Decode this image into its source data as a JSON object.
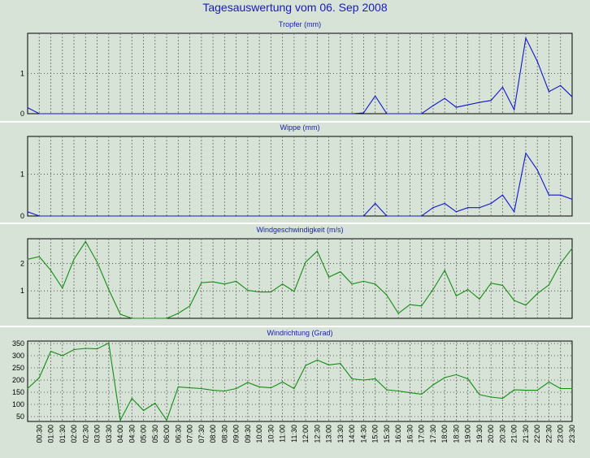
{
  "title": "Tagesauswertung vom 06. Sep 2008",
  "x_labels": [
    "00:30",
    "01:00",
    "01:30",
    "02:00",
    "02:30",
    "03:00",
    "03:30",
    "04:00",
    "04:30",
    "05:00",
    "05:30",
    "06:00",
    "06:30",
    "07:00",
    "07:30",
    "08:00",
    "08:30",
    "09:00",
    "09:30",
    "10:00",
    "10:30",
    "11:00",
    "11:30",
    "12:00",
    "12:30",
    "13:00",
    "13:30",
    "14:00",
    "14:30",
    "15:00",
    "15:30",
    "16:00",
    "16:30",
    "17:00",
    "17:30",
    "18:00",
    "18:30",
    "19:00",
    "19:30",
    "20:00",
    "20:30",
    "21:00",
    "21:30",
    "22:00",
    "22:30",
    "23:00",
    "23:30"
  ],
  "chart_data": [
    {
      "type": "line",
      "title": "Tropfer (mm)",
      "color": "#1414d2",
      "ylim": [
        0,
        2
      ],
      "yticks": [
        0,
        1
      ],
      "x": [
        "00:00",
        "00:30",
        "01:00",
        "01:30",
        "02:00",
        "02:30",
        "03:00",
        "03:30",
        "04:00",
        "04:30",
        "05:00",
        "05:30",
        "06:00",
        "06:30",
        "07:00",
        "07:30",
        "08:00",
        "08:30",
        "09:00",
        "09:30",
        "10:00",
        "10:30",
        "11:00",
        "11:30",
        "12:00",
        "12:30",
        "13:00",
        "13:30",
        "14:00",
        "14:30",
        "15:00",
        "15:30",
        "16:00",
        "16:30",
        "17:00",
        "17:30",
        "18:00",
        "18:30",
        "19:00",
        "19:30",
        "20:00",
        "20:30",
        "21:00",
        "21:30",
        "22:00",
        "22:30",
        "23:00",
        "23:30"
      ],
      "values": [
        0.15,
        0,
        0,
        0,
        0,
        0,
        0,
        0,
        0,
        0,
        0,
        0,
        0,
        0,
        0,
        0,
        0,
        0,
        0,
        0,
        0,
        0,
        0,
        0,
        0,
        0,
        0,
        0,
        0,
        0.02,
        0.44,
        0,
        0,
        0,
        0,
        0.2,
        0.38,
        0.16,
        0.22,
        0.28,
        0.33,
        0.66,
        0.1,
        1.88,
        1.3,
        0.55,
        0.7,
        0.42
      ]
    },
    {
      "type": "line",
      "title": "Wippe (mm)",
      "color": "#1414d2",
      "ylim": [
        0,
        1.9
      ],
      "yticks": [
        0,
        1
      ],
      "x": [
        "00:00",
        "00:30",
        "01:00",
        "01:30",
        "02:00",
        "02:30",
        "03:00",
        "03:30",
        "04:00",
        "04:30",
        "05:00",
        "05:30",
        "06:00",
        "06:30",
        "07:00",
        "07:30",
        "08:00",
        "08:30",
        "09:00",
        "09:30",
        "10:00",
        "10:30",
        "11:00",
        "11:30",
        "12:00",
        "12:30",
        "13:00",
        "13:30",
        "14:00",
        "14:30",
        "15:00",
        "15:30",
        "16:00",
        "16:30",
        "17:00",
        "17:30",
        "18:00",
        "18:30",
        "19:00",
        "19:30",
        "20:00",
        "20:30",
        "21:00",
        "21:30",
        "22:00",
        "22:30",
        "23:00",
        "23:30"
      ],
      "values": [
        0.1,
        0,
        0,
        0,
        0,
        0,
        0,
        0,
        0,
        0,
        0,
        0,
        0,
        0,
        0,
        0,
        0,
        0,
        0,
        0,
        0,
        0,
        0,
        0,
        0,
        0,
        0,
        0,
        0,
        0,
        0.3,
        0,
        0,
        0,
        0,
        0.2,
        0.3,
        0.1,
        0.2,
        0.2,
        0.3,
        0.5,
        0.1,
        1.5,
        1.1,
        0.5,
        0.5,
        0.4
      ]
    },
    {
      "type": "line",
      "title": "Windgeschwindigkeit (m/s)",
      "color": "#148c14",
      "ylim": [
        0,
        2.9
      ],
      "yticks": [
        1,
        2
      ],
      "x": [
        "00:00",
        "00:30",
        "01:00",
        "01:30",
        "02:00",
        "02:30",
        "03:00",
        "03:30",
        "04:00",
        "04:30",
        "05:00",
        "05:30",
        "06:00",
        "06:30",
        "07:00",
        "07:30",
        "08:00",
        "08:30",
        "09:00",
        "09:30",
        "10:00",
        "10:30",
        "11:00",
        "11:30",
        "12:00",
        "12:30",
        "13:00",
        "13:30",
        "14:00",
        "14:30",
        "15:00",
        "15:30",
        "16:00",
        "16:30",
        "17:00",
        "17:30",
        "18:00",
        "18:30",
        "19:00",
        "19:30",
        "20:00",
        "20:30",
        "21:00",
        "21:30",
        "22:00",
        "22:30",
        "23:00",
        "23:30"
      ],
      "values": [
        2.15,
        2.25,
        1.75,
        1.1,
        2.15,
        2.8,
        2.05,
        1.05,
        0.15,
        0,
        0,
        0,
        0,
        0.18,
        0.45,
        1.3,
        1.33,
        1.25,
        1.35,
        1.02,
        0.96,
        0.96,
        1.25,
        0.98,
        2.05,
        2.45,
        1.5,
        1.7,
        1.25,
        1.35,
        1.25,
        0.85,
        0.18,
        0.5,
        0.45,
        1.05,
        1.75,
        0.82,
        1.05,
        0.7,
        1.28,
        1.2,
        0.65,
        0.48,
        0.9,
        1.22,
        2.0,
        2.55
      ]
    },
    {
      "type": "line",
      "title": "Windrichtung (Grad)",
      "color": "#148c14",
      "ylim": [
        30,
        360
      ],
      "yticks": [
        50,
        100,
        150,
        200,
        250,
        300,
        350
      ],
      "x": [
        "00:00",
        "00:30",
        "01:00",
        "01:30",
        "02:00",
        "02:30",
        "03:00",
        "03:30",
        "04:00",
        "04:30",
        "05:00",
        "05:30",
        "06:00",
        "06:30",
        "07:00",
        "07:30",
        "08:00",
        "08:30",
        "09:00",
        "09:30",
        "10:00",
        "10:30",
        "11:00",
        "11:30",
        "12:00",
        "12:30",
        "13:00",
        "13:30",
        "14:00",
        "14:30",
        "15:00",
        "15:30",
        "16:00",
        "16:30",
        "17:00",
        "17:30",
        "18:00",
        "18:30",
        "19:00",
        "19:30",
        "20:00",
        "20:30",
        "21:00",
        "21:30",
        "22:00",
        "22:30",
        "23:00",
        "23:30"
      ],
      "values": [
        165,
        210,
        318,
        300,
        325,
        330,
        328,
        352,
        35,
        125,
        75,
        105,
        35,
        172,
        168,
        165,
        158,
        155,
        165,
        190,
        172,
        168,
        192,
        165,
        260,
        282,
        262,
        268,
        205,
        200,
        205,
        160,
        155,
        148,
        142,
        180,
        210,
        222,
        205,
        140,
        130,
        125,
        160,
        158,
        158,
        192,
        165,
        165
      ]
    }
  ]
}
